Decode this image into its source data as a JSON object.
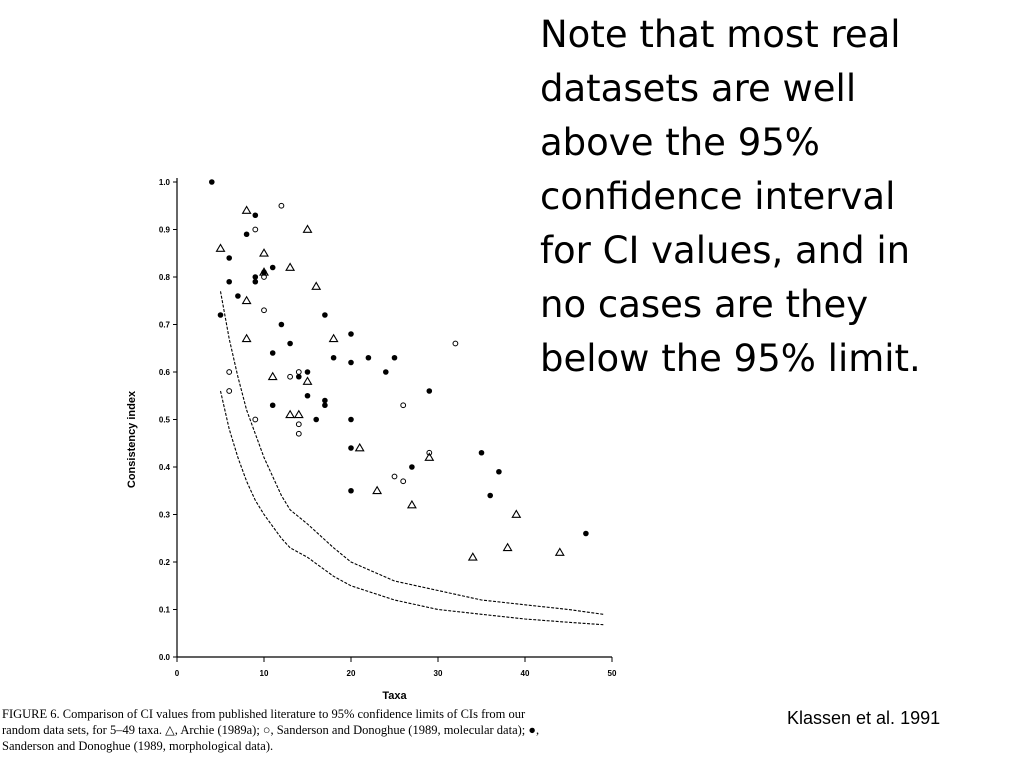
{
  "note": {
    "lines": [
      "Note that most real",
      "datasets are well",
      "above the 95%",
      "confidence interval",
      "for CI values, and in",
      "no cases are they",
      "below the 95% limit."
    ]
  },
  "citation": "Klassen et al. 1991",
  "caption": {
    "lines": [
      "FIGURE 6.   Comparison of CI values from published literature to 95% confidence limits of CIs from our",
      "random data sets, for 5–49 taxa. △, Archie (1989a); ○, Sanderson and Donoghue (1989, molecular data); ●,",
      "Sanderson and Donoghue (1989, morphological data)."
    ]
  },
  "chart_data": {
    "type": "scatter",
    "xlabel": "Taxa",
    "ylabel": "Consistency index",
    "xlim": [
      0,
      50
    ],
    "ylim": [
      0,
      1.0
    ],
    "x_ticks": [
      0,
      10,
      20,
      30,
      40,
      50
    ],
    "y_ticks": [
      0.0,
      0.1,
      0.2,
      0.3,
      0.4,
      0.5,
      0.6,
      0.7,
      0.8,
      0.9,
      1.0
    ],
    "x_tick_labels": [
      "0",
      "10",
      "20",
      "30",
      "40",
      "50"
    ],
    "y_tick_labels": [
      "0.0",
      "0.1",
      "0.2",
      "0.3",
      "0.4",
      "0.5",
      "0.6",
      "0.7",
      "0.8",
      "0.9",
      "1.0"
    ],
    "grid": false,
    "series": [
      {
        "marker": "triangle",
        "points": [
          [
            5,
            0.86
          ],
          [
            8,
            0.94
          ],
          [
            8,
            0.75
          ],
          [
            8,
            0.67
          ],
          [
            10,
            0.85
          ],
          [
            10,
            0.81
          ],
          [
            11,
            0.59
          ],
          [
            13,
            0.82
          ],
          [
            13,
            0.51
          ],
          [
            14,
            0.51
          ],
          [
            15,
            0.9
          ],
          [
            15,
            0.58
          ],
          [
            16,
            0.78
          ],
          [
            18,
            0.67
          ],
          [
            21,
            0.44
          ],
          [
            23,
            0.35
          ],
          [
            27,
            0.32
          ],
          [
            29,
            0.42
          ],
          [
            34,
            0.21
          ],
          [
            38,
            0.23
          ],
          [
            39,
            0.3
          ],
          [
            44,
            0.22
          ]
        ]
      },
      {
        "marker": "open-circle",
        "points": [
          [
            6,
            0.6
          ],
          [
            6,
            0.56
          ],
          [
            9,
            0.9
          ],
          [
            9,
            0.5
          ],
          [
            10,
            0.73
          ],
          [
            10,
            0.8
          ],
          [
            12,
            0.95
          ],
          [
            13,
            0.59
          ],
          [
            14,
            0.6
          ],
          [
            14,
            0.49
          ],
          [
            14,
            0.47
          ],
          [
            25,
            0.38
          ],
          [
            26,
            0.37
          ],
          [
            26,
            0.53
          ],
          [
            29,
            0.43
          ],
          [
            32,
            0.66
          ]
        ]
      },
      {
        "marker": "filled-circle",
        "points": [
          [
            4,
            1.0
          ],
          [
            5,
            0.72
          ],
          [
            6,
            0.84
          ],
          [
            6,
            0.79
          ],
          [
            7,
            0.76
          ],
          [
            8,
            0.89
          ],
          [
            9,
            0.93
          ],
          [
            9,
            0.8
          ],
          [
            9,
            0.79
          ],
          [
            10,
            0.81
          ],
          [
            11,
            0.82
          ],
          [
            11,
            0.64
          ],
          [
            11,
            0.53
          ],
          [
            12,
            0.7
          ],
          [
            13,
            0.66
          ],
          [
            14,
            0.59
          ],
          [
            15,
            0.6
          ],
          [
            15,
            0.55
          ],
          [
            16,
            0.5
          ],
          [
            17,
            0.72
          ],
          [
            17,
            0.53
          ],
          [
            17,
            0.54
          ],
          [
            18,
            0.63
          ],
          [
            20,
            0.68
          ],
          [
            20,
            0.62
          ],
          [
            20,
            0.5
          ],
          [
            20,
            0.44
          ],
          [
            20,
            0.35
          ],
          [
            22,
            0.63
          ],
          [
            24,
            0.6
          ],
          [
            25,
            0.63
          ],
          [
            27,
            0.4
          ],
          [
            29,
            0.56
          ],
          [
            35,
            0.43
          ],
          [
            36,
            0.34
          ],
          [
            37,
            0.39
          ],
          [
            47,
            0.26
          ]
        ]
      }
    ],
    "curves": [
      {
        "style": "dashed",
        "points": [
          [
            5,
            0.77
          ],
          [
            6,
            0.67
          ],
          [
            7,
            0.59
          ],
          [
            8,
            0.52
          ],
          [
            9,
            0.47
          ],
          [
            10,
            0.42
          ],
          [
            12,
            0.34
          ],
          [
            13,
            0.31
          ],
          [
            15,
            0.28
          ],
          [
            18,
            0.23
          ],
          [
            20,
            0.2
          ],
          [
            25,
            0.16
          ],
          [
            30,
            0.14
          ],
          [
            35,
            0.12
          ],
          [
            40,
            0.11
          ],
          [
            45,
            0.1
          ],
          [
            49,
            0.09
          ]
        ]
      },
      {
        "style": "dashed",
        "points": [
          [
            5,
            0.56
          ],
          [
            6,
            0.48
          ],
          [
            7,
            0.42
          ],
          [
            8,
            0.37
          ],
          [
            9,
            0.33
          ],
          [
            10,
            0.3
          ],
          [
            12,
            0.25
          ],
          [
            13,
            0.23
          ],
          [
            15,
            0.21
          ],
          [
            18,
            0.17
          ],
          [
            20,
            0.15
          ],
          [
            25,
            0.12
          ],
          [
            30,
            0.1
          ],
          [
            35,
            0.09
          ],
          [
            40,
            0.08
          ],
          [
            45,
            0.073
          ],
          [
            49,
            0.068
          ]
        ]
      }
    ]
  }
}
